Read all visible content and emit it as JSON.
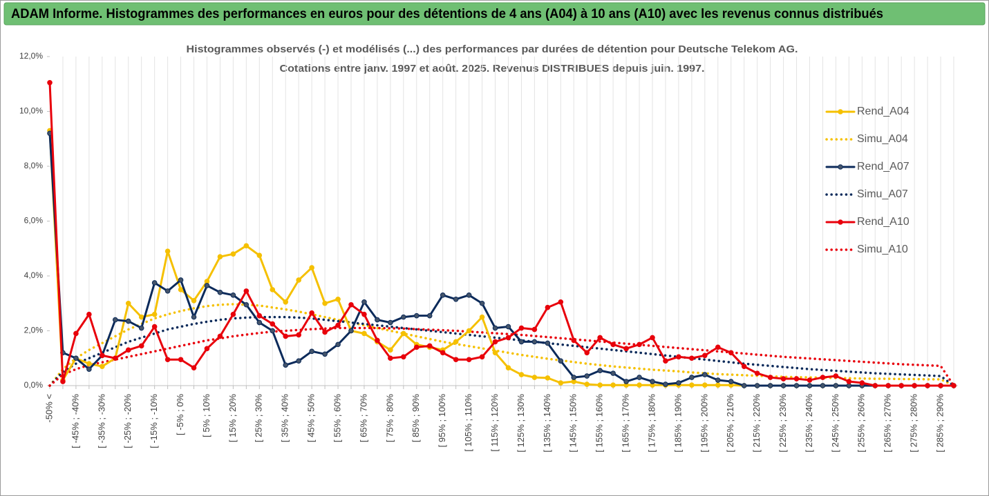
{
  "header": {
    "title": "ADAM Informe. Histogrammes des performances en euros pour des détentions de 4 ans (A04) à 10 ans (A10) avec les revenus connus distribués"
  },
  "chart_data": {
    "type": "line",
    "title": [
      "Histogrammes observés (-) et modélisés (...) des performances par durées de détention pour Deutsche Telekom AG.",
      "Cotations entre janv. 1997 et août. 2025. Revenus DISTRIBUES depuis juin. 1997."
    ],
    "categories": [
      "-50% <",
      null,
      "[ -45% ; -40%",
      null,
      "[ -35% ; -30%",
      null,
      "[ -25% ; -20%",
      null,
      "[ -15% ; -10%",
      null,
      "[ -5% ; 0%",
      null,
      "[ 5% ; 10%",
      null,
      "[ 15% ; 20%",
      null,
      "[ 25% ; 30%",
      null,
      "[ 35% ; 40%",
      null,
      "[ 45% ; 50%",
      null,
      "[ 55% ; 60%",
      null,
      "[ 65% ; 70%",
      null,
      "[ 75% ; 80%",
      null,
      "[ 85% ; 90%",
      null,
      "[ 95% ; 100%",
      null,
      "[ 105% ; 110%",
      null,
      "[ 115% ; 120%",
      null,
      "[ 125% ; 130%",
      null,
      "[ 135% ; 140%",
      null,
      "[ 145% ; 150%",
      null,
      "[ 155% ; 160%",
      null,
      "[ 165% ; 170%",
      null,
      "[ 175% ; 180%",
      null,
      "[ 185% ; 190%",
      null,
      "[ 195% ; 200%",
      null,
      "[ 205% ; 210%",
      null,
      "[ 215% ; 220%",
      null,
      "[ 225% ; 230%",
      null,
      "[ 235% ; 240%",
      null,
      "[ 245% ; 250%",
      null,
      "[ 255% ; 260%",
      null,
      "[ 265% ; 270%",
      null,
      "[ 275% ; 280%",
      null,
      "[ 285% ; 290%",
      null
    ],
    "ylim": [
      0,
      12
    ],
    "yticks": [
      {
        "value": 0,
        "label": "0,0%"
      },
      {
        "value": 2,
        "label": "2,0%"
      },
      {
        "value": 4,
        "label": "4,0%"
      },
      {
        "value": 6,
        "label": "6,0%"
      },
      {
        "value": 8,
        "label": "8,0%"
      },
      {
        "value": 10,
        "label": "10,0%"
      },
      {
        "value": 12,
        "label": "12,0%"
      }
    ],
    "grid": "x",
    "legend": "right",
    "series": [
      {
        "name": "Simu_A04",
        "color": "#f5c000",
        "style": "dotted",
        "marker": false,
        "values": [
          0,
          0.6,
          1.0,
          1.3,
          1.55,
          1.8,
          2.05,
          2.25,
          2.45,
          2.6,
          2.72,
          2.82,
          2.9,
          2.95,
          2.97,
          2.95,
          2.92,
          2.85,
          2.78,
          2.7,
          2.6,
          2.5,
          2.4,
          2.3,
          2.2,
          2.1,
          2.0,
          1.9,
          1.8,
          1.7,
          1.6,
          1.52,
          1.44,
          1.36,
          1.28,
          1.2,
          1.12,
          1.05,
          0.98,
          0.92,
          0.86,
          0.8,
          0.75,
          0.7,
          0.66,
          0.62,
          0.58,
          0.55,
          0.52,
          0.48,
          0.45,
          0.42,
          0.4,
          0.38,
          0.36,
          0.34,
          0.32,
          0.31,
          0.3,
          0.29,
          0.28,
          0.27,
          0.26,
          0.25,
          0.25,
          0.24,
          0.24,
          0.23,
          0.23,
          0
        ]
      },
      {
        "name": "Simu_A07",
        "color": "#0b2a5a",
        "style": "dotted",
        "marker": false,
        "values": [
          0,
          0.5,
          0.8,
          1.0,
          1.2,
          1.4,
          1.6,
          1.75,
          1.9,
          2.05,
          2.15,
          2.25,
          2.33,
          2.4,
          2.45,
          2.48,
          2.5,
          2.5,
          2.5,
          2.48,
          2.45,
          2.4,
          2.35,
          2.3,
          2.25,
          2.2,
          2.15,
          2.1,
          2.05,
          2.0,
          1.95,
          1.9,
          1.85,
          1.8,
          1.75,
          1.7,
          1.65,
          1.6,
          1.55,
          1.5,
          1.45,
          1.4,
          1.35,
          1.3,
          1.25,
          1.2,
          1.15,
          1.1,
          1.05,
          1.0,
          0.95,
          0.9,
          0.85,
          0.8,
          0.76,
          0.72,
          0.68,
          0.64,
          0.6,
          0.57,
          0.54,
          0.51,
          0.48,
          0.45,
          0.43,
          0.41,
          0.39,
          0.37,
          0.35,
          0
        ]
      },
      {
        "name": "Simu_A10",
        "color": "#e8000b",
        "style": "dotted",
        "marker": false,
        "values": [
          0,
          0.4,
          0.6,
          0.75,
          0.85,
          0.95,
          1.05,
          1.15,
          1.25,
          1.35,
          1.45,
          1.55,
          1.65,
          1.72,
          1.8,
          1.86,
          1.92,
          1.97,
          2.0,
          2.03,
          2.06,
          2.08,
          2.1,
          2.1,
          2.1,
          2.1,
          2.09,
          2.08,
          2.06,
          2.04,
          2.02,
          2.0,
          1.97,
          1.94,
          1.91,
          1.88,
          1.85,
          1.81,
          1.77,
          1.73,
          1.69,
          1.65,
          1.61,
          1.57,
          1.53,
          1.49,
          1.45,
          1.41,
          1.37,
          1.33,
          1.29,
          1.25,
          1.21,
          1.17,
          1.13,
          1.09,
          1.05,
          1.02,
          0.99,
          0.96,
          0.93,
          0.9,
          0.87,
          0.84,
          0.81,
          0.78,
          0.76,
          0.74,
          0.72,
          0
        ]
      },
      {
        "name": "Rend_A04",
        "color": "#f5c000",
        "style": "solid",
        "marker": true,
        "values": [
          9.3,
          0.2,
          1.0,
          0.8,
          0.7,
          1.0,
          3.0,
          2.5,
          2.6,
          4.9,
          3.5,
          3.1,
          3.8,
          4.7,
          4.8,
          5.1,
          4.75,
          3.5,
          3.05,
          3.85,
          4.3,
          3.0,
          3.15,
          2.0,
          1.9,
          1.6,
          1.3,
          1.9,
          1.5,
          1.4,
          1.3,
          1.6,
          2.0,
          2.5,
          1.2,
          0.65,
          0.4,
          0.3,
          0.28,
          0.1,
          0.15,
          0.05,
          0.02,
          0.02,
          0.02,
          0.02,
          0.02,
          0.02,
          0.02,
          0.02,
          0.02,
          0.02,
          0.02,
          0,
          0,
          0,
          0,
          0,
          0,
          0,
          0,
          0,
          0,
          0,
          0,
          0,
          0,
          0,
          0,
          0
        ]
      },
      {
        "name": "Rend_A07",
        "color": "#0b2a5a",
        "style": "solid",
        "marker": true,
        "values": [
          9.2,
          1.2,
          1.0,
          0.6,
          1.1,
          2.4,
          2.35,
          2.1,
          3.75,
          3.45,
          3.85,
          2.5,
          3.65,
          3.4,
          3.3,
          2.95,
          2.3,
          2.0,
          0.75,
          0.9,
          1.25,
          1.15,
          1.5,
          2.0,
          3.05,
          2.4,
          2.3,
          2.5,
          2.55,
          2.55,
          3.3,
          3.15,
          3.3,
          3.0,
          2.1,
          2.15,
          1.6,
          1.6,
          1.55,
          0.9,
          0.3,
          0.35,
          0.55,
          0.45,
          0.15,
          0.3,
          0.15,
          0.05,
          0.1,
          0.3,
          0.4,
          0.2,
          0.15,
          0,
          0,
          0,
          0,
          0,
          0,
          0,
          0,
          0,
          0,
          0,
          0,
          0,
          0,
          0,
          0,
          0
        ]
      },
      {
        "name": "Rend_A10",
        "color": "#e8000b",
        "style": "solid",
        "marker": true,
        "values": [
          11.05,
          0.15,
          1.9,
          2.6,
          1.1,
          1.0,
          1.3,
          1.45,
          2.15,
          0.95,
          0.95,
          0.65,
          1.35,
          1.8,
          2.6,
          3.45,
          2.55,
          2.25,
          1.8,
          1.85,
          2.65,
          1.95,
          2.2,
          2.95,
          2.6,
          1.65,
          1.0,
          1.05,
          1.4,
          1.45,
          1.2,
          0.95,
          0.95,
          1.05,
          1.6,
          1.75,
          2.1,
          2.05,
          2.85,
          3.05,
          1.65,
          1.2,
          1.75,
          1.5,
          1.35,
          1.5,
          1.75,
          0.9,
          1.05,
          1.0,
          1.1,
          1.4,
          1.2,
          0.7,
          0.45,
          0.3,
          0.25,
          0.25,
          0.2,
          0.3,
          0.35,
          0.15,
          0.1,
          0,
          0,
          0,
          0,
          0,
          0,
          0
        ]
      }
    ],
    "legend_order": [
      3,
      0,
      4,
      1,
      5,
      2
    ]
  }
}
